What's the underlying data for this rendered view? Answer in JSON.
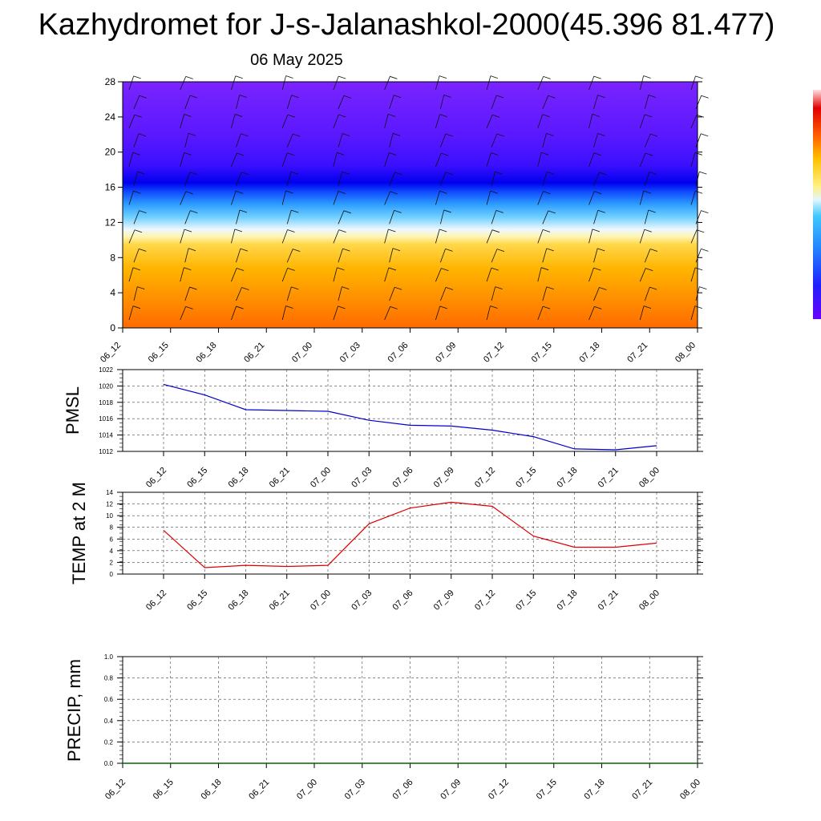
{
  "header": {
    "title": "Kazhydromet for J-s-Jalanashkol-2000(45.396 81.477)",
    "subtitle": "06 May 2025"
  },
  "colors": {
    "pmsl_line": "#0000cc",
    "temp_line": "#dd0000",
    "precip_line": "#006600",
    "grid": "#555555"
  },
  "chart_data": [
    {
      "id": "cross-section",
      "type": "heatmap",
      "title": "",
      "xlabel": "",
      "ylabel": "",
      "categories": [
        "06_12",
        "06_15",
        "06_18",
        "06_21",
        "07_00",
        "07_03",
        "07_06",
        "07_09",
        "07_12",
        "07_15",
        "07_18",
        "07_21",
        "08_00"
      ],
      "ylim": [
        0,
        28
      ],
      "yticks": [
        0,
        4,
        8,
        12,
        16,
        20,
        24,
        28
      ],
      "colormap": [
        "#ff6600",
        "#ff9900",
        "#ffcc00",
        "#fff0a0",
        "#e8f4ff",
        "#40c0ff",
        "#2060ff",
        "#0000ee",
        "#3a00ff",
        "#7a20ff"
      ],
      "colorbar": "right",
      "overlay": "wind-barbs"
    },
    {
      "id": "pmsl",
      "type": "line",
      "ylabel": "PMSL",
      "categories": [
        "06_12",
        "06_15",
        "06_18",
        "06_21",
        "07_00",
        "07_03",
        "07_06",
        "07_09",
        "07_12",
        "07_15",
        "07_18",
        "07_21",
        "08_00"
      ],
      "values": [
        1020.2,
        1018.9,
        1017.1,
        1017.0,
        1016.9,
        1015.8,
        1015.2,
        1015.1,
        1014.6,
        1013.8,
        1012.3,
        1012.2,
        1012.7
      ],
      "ylim": [
        1012,
        1022
      ],
      "yticks": [
        1012,
        1014,
        1016,
        1018,
        1020,
        1022
      ],
      "grid": true
    },
    {
      "id": "temp",
      "type": "line",
      "ylabel": "TEMP at 2 M",
      "categories": [
        "06_12",
        "06_15",
        "06_18",
        "06_21",
        "07_00",
        "07_03",
        "07_06",
        "07_09",
        "07_12",
        "07_15",
        "07_18",
        "07_21",
        "08_00"
      ],
      "values": [
        7.5,
        1.1,
        1.5,
        1.3,
        1.5,
        8.6,
        11.3,
        12.3,
        11.6,
        6.5,
        4.6,
        4.6,
        5.3
      ],
      "ylim": [
        0,
        14
      ],
      "yticks": [
        0,
        2,
        4,
        6,
        8,
        10,
        12,
        14
      ],
      "grid": true
    },
    {
      "id": "precip",
      "type": "line",
      "ylabel": "PRECIP, mm",
      "categories": [
        "06_12",
        "06_15",
        "06_18",
        "06_21",
        "07_00",
        "07_03",
        "07_06",
        "07_09",
        "07_12",
        "07_15",
        "07_18",
        "07_21",
        "08_00"
      ],
      "values": [
        0,
        0,
        0,
        0,
        0,
        0,
        0,
        0,
        0,
        0,
        0,
        0,
        0
      ],
      "ylim": [
        0,
        1.0
      ],
      "yticks": [
        "0.0",
        "0.2",
        "0.4",
        "0.6",
        "0.8",
        "1.0"
      ],
      "grid": true
    }
  ]
}
